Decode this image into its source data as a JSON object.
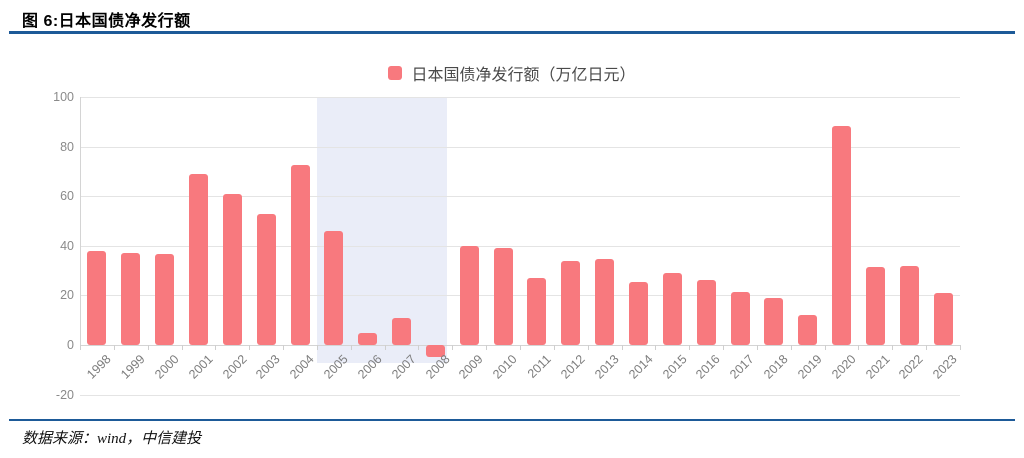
{
  "figure": {
    "title": "图 6:日本国债净发行额",
    "source": "数据来源：wind，中信建投"
  },
  "legend": {
    "label": "日本国债净发行额（万亿日元）"
  },
  "colors": {
    "bar": "#F8797E",
    "band": "#EAEDF8",
    "grid": "#E4E4E4",
    "zero_axis": "#D4D4D4",
    "tick": "#CFCFCF",
    "y_label": "#8A8A8A",
    "x_label": "#7D7D7D",
    "rule": "#1D5A98"
  },
  "chart_data": {
    "type": "bar",
    "title": "图 6:日本国债净发行额",
    "legend": [
      "日本国债净发行额（万亿日元）"
    ],
    "legend_position": "top-center",
    "categories": [
      "1998",
      "1999",
      "2000",
      "2001",
      "2002",
      "2003",
      "2004",
      "2005",
      "2006",
      "2007",
      "2008",
      "2009",
      "2010",
      "2011",
      "2012",
      "2013",
      "2014",
      "2015",
      "2016",
      "2017",
      "2018",
      "2019",
      "2020",
      "2021",
      "2022",
      "2023"
    ],
    "values": [
      38,
      37,
      36.5,
      69,
      61,
      53,
      72.5,
      46,
      5,
      11,
      -5,
      40,
      39,
      27,
      34,
      34.5,
      25.5,
      29,
      26,
      21.5,
      19,
      12,
      88.5,
      31.5,
      32,
      21
    ],
    "ylabel": "万亿日元",
    "ylim": [
      -20,
      100
    ],
    "yticks": [
      100,
      80,
      60,
      40,
      20,
      0,
      -20
    ],
    "grid": true,
    "highlight_band": {
      "from": "2005",
      "to": "2008"
    }
  }
}
